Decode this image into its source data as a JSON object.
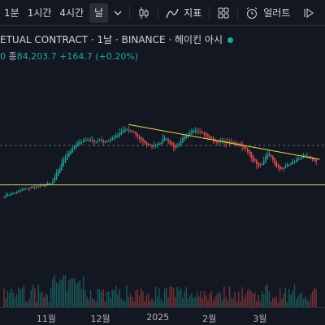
{
  "toolbar": {
    "intervals": [
      "1분",
      "1시간",
      "4시간",
      "날"
    ],
    "active_interval": "날",
    "indicators_label": "지표",
    "alert_label": "얼러트"
  },
  "legend": {
    "title": "ETUAL CONTRACT · 1날 · BINANCE · 헤이킨 아시",
    "close_prefix": "0",
    "close_label": "종",
    "close_value": "84,203.7",
    "change": "+164.7",
    "change_pct": "(+0.20%)"
  },
  "colors": {
    "up": "#26a69a",
    "down": "#ef5350",
    "trendline": "#e6d84a",
    "support": "#e6d84a",
    "bg": "#131722"
  },
  "chart_data": {
    "type": "candlestick",
    "style": "heikin-ashi",
    "x_ticks": [
      "11월",
      "12월",
      "2025",
      "2월",
      "3월"
    ],
    "anchor_points": [
      {
        "date": "2024-10-10",
        "price": 62000
      },
      {
        "date": "2024-10-25",
        "price": 67500
      },
      {
        "date": "2024-11-05",
        "price": 69500
      },
      {
        "date": "2024-11-13",
        "price": 89000
      },
      {
        "date": "2024-11-22",
        "price": 98000
      },
      {
        "date": "2024-12-05",
        "price": 97000
      },
      {
        "date": "2024-12-17",
        "price": 105000
      },
      {
        "date": "2024-12-30",
        "price": 93000
      },
      {
        "date": "2025-01-07",
        "price": 100000
      },
      {
        "date": "2025-01-13",
        "price": 92000
      },
      {
        "date": "2025-01-22",
        "price": 106000
      },
      {
        "date": "2025-02-04",
        "price": 97000
      },
      {
        "date": "2025-02-18",
        "price": 95500
      },
      {
        "date": "2025-02-28",
        "price": 80000
      },
      {
        "date": "2025-03-05",
        "price": 89000
      },
      {
        "date": "2025-03-11",
        "price": 78500
      },
      {
        "date": "2025-03-24",
        "price": 87500
      },
      {
        "date": "2025-04-01",
        "price": 84200
      }
    ],
    "trendline": [
      {
        "date": "2024-12-18",
        "price": 108000
      },
      {
        "date": "2025-04-03",
        "price": 85500
      }
    ],
    "support_level": 69000,
    "resistance_dashed": 94500,
    "volume": "shown"
  }
}
